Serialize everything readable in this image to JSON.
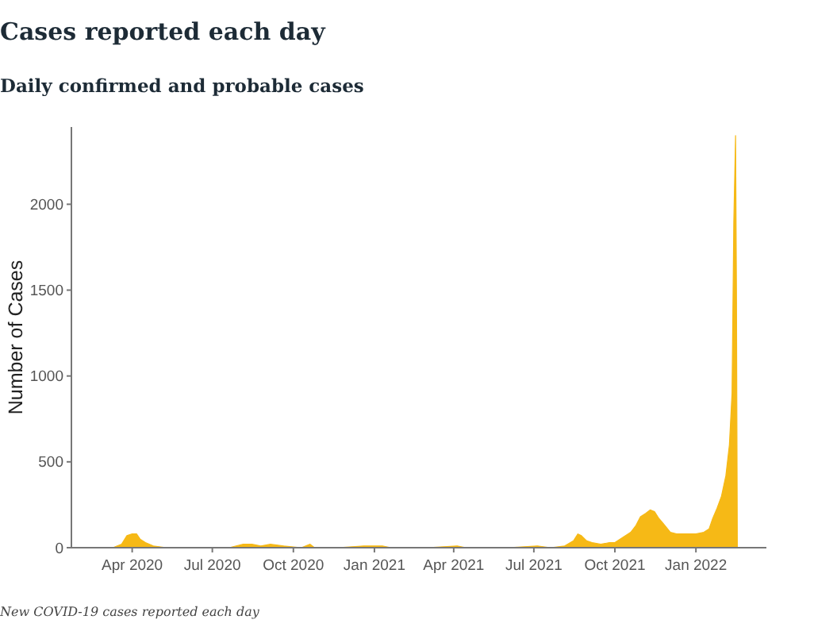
{
  "chart_data": {
    "type": "area",
    "title": "Cases reported each day",
    "subtitle": "Daily confirmed and probable cases",
    "ylabel": "Number of Cases",
    "annotations": [
      "New COVID-19 cases reported each day"
    ],
    "x": [
      "2020-03-10",
      "2020-03-20",
      "2020-03-26",
      "2020-04-01",
      "2020-04-06",
      "2020-04-10",
      "2020-04-16",
      "2020-04-25",
      "2020-05-10",
      "2020-06-15",
      "2020-07-20",
      "2020-08-05",
      "2020-08-15",
      "2020-08-25",
      "2020-09-05",
      "2020-09-20",
      "2020-10-10",
      "2020-10-20",
      "2020-10-25",
      "2020-11-20",
      "2020-12-20",
      "2021-01-10",
      "2021-01-20",
      "2021-03-01",
      "2021-04-05",
      "2021-04-15",
      "2021-06-01",
      "2021-07-05",
      "2021-07-20",
      "2021-08-05",
      "2021-08-15",
      "2021-08-20",
      "2021-08-24",
      "2021-08-30",
      "2021-09-05",
      "2021-09-15",
      "2021-09-25",
      "2021-10-01",
      "2021-10-10",
      "2021-10-19",
      "2021-10-25",
      "2021-10-30",
      "2021-11-05",
      "2021-11-10",
      "2021-11-15",
      "2021-11-20",
      "2021-11-25",
      "2021-12-03",
      "2021-12-10",
      "2021-12-16",
      "2021-12-22",
      "2022-01-01",
      "2022-01-10",
      "2022-01-16",
      "2022-01-20",
      "2022-01-25",
      "2022-01-30",
      "2022-02-04",
      "2022-02-08",
      "2022-02-11",
      "2022-02-13",
      "2022-02-15",
      "2022-02-16",
      "2022-02-17"
    ],
    "series": [
      {
        "color": "#f6b916",
        "values": [
          0,
          20,
          70,
          80,
          80,
          50,
          30,
          10,
          0,
          0,
          0,
          20,
          20,
          10,
          20,
          10,
          0,
          20,
          0,
          0,
          10,
          10,
          0,
          0,
          10,
          0,
          0,
          10,
          0,
          10,
          40,
          80,
          70,
          40,
          30,
          20,
          30,
          30,
          60,
          90,
          130,
          180,
          200,
          220,
          210,
          170,
          140,
          90,
          80,
          80,
          80,
          80,
          90,
          110,
          170,
          230,
          300,
          420,
          600,
          900,
          1900,
          2400,
          1500,
          0
        ]
      }
    ],
    "xlim": [
      "2020-01-23",
      "2022-03-22"
    ],
    "ylim": [
      0,
      2450
    ],
    "xticks": [
      {
        "value": "2020-04-01",
        "label": "Apr 2020"
      },
      {
        "value": "2020-07-01",
        "label": "Jul 2020"
      },
      {
        "value": "2020-10-01",
        "label": "Oct 2020"
      },
      {
        "value": "2021-01-01",
        "label": "Jan 2021"
      },
      {
        "value": "2021-04-01",
        "label": "Apr 2021"
      },
      {
        "value": "2021-07-01",
        "label": "Jul 2021"
      },
      {
        "value": "2021-10-01",
        "label": "Oct 2021"
      },
      {
        "value": "2022-01-01",
        "label": "Jan 2022"
      }
    ],
    "yticks": [
      0,
      500,
      1000,
      1500,
      2000
    ]
  }
}
